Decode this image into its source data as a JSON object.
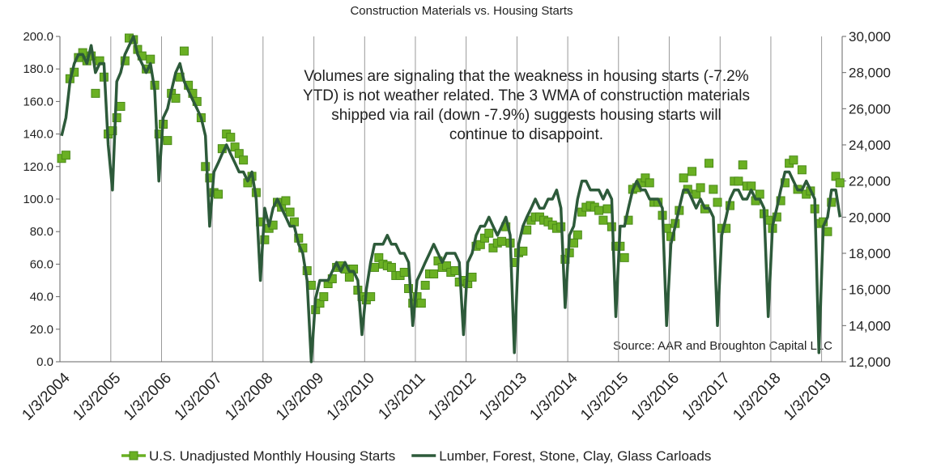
{
  "chart_data": {
    "type": "line",
    "title": "Construction Materials vs. Housing Starts",
    "annotation": [
      "Volumes are signaling that the weakness in housing starts (-7.2%",
      "YTD) is not weather related.  The 3 WMA of construction materials",
      "shipped via rail (down -7.9%) suggests housing starts will",
      "continue to disappoint."
    ],
    "source": "Source: AAR and Broughton Capital LLC",
    "x": [
      "2004-01",
      "2004-02",
      "2004-03",
      "2004-04",
      "2004-05",
      "2004-06",
      "2004-07",
      "2004-08",
      "2004-09",
      "2004-10",
      "2004-11",
      "2004-12",
      "2005-01",
      "2005-02",
      "2005-03",
      "2005-04",
      "2005-05",
      "2005-06",
      "2005-07",
      "2005-08",
      "2005-09",
      "2005-10",
      "2005-11",
      "2005-12",
      "2006-01",
      "2006-02",
      "2006-03",
      "2006-04",
      "2006-05",
      "2006-06",
      "2006-07",
      "2006-08",
      "2006-09",
      "2006-10",
      "2006-11",
      "2006-12",
      "2007-01",
      "2007-02",
      "2007-03",
      "2007-04",
      "2007-05",
      "2007-06",
      "2007-07",
      "2007-08",
      "2007-09",
      "2007-10",
      "2007-11",
      "2007-12",
      "2008-01",
      "2008-02",
      "2008-03",
      "2008-04",
      "2008-05",
      "2008-06",
      "2008-07",
      "2008-08",
      "2008-09",
      "2008-10",
      "2008-11",
      "2008-12",
      "2009-01",
      "2009-02",
      "2009-03",
      "2009-04",
      "2009-05",
      "2009-06",
      "2009-07",
      "2009-08",
      "2009-09",
      "2009-10",
      "2009-11",
      "2009-12",
      "2010-01",
      "2010-02",
      "2010-03",
      "2010-04",
      "2010-05",
      "2010-06",
      "2010-07",
      "2010-08",
      "2010-09",
      "2010-10",
      "2010-11",
      "2010-12",
      "2011-01",
      "2011-02",
      "2011-03",
      "2011-04",
      "2011-05",
      "2011-06",
      "2011-07",
      "2011-08",
      "2011-09",
      "2011-10",
      "2011-11",
      "2011-12",
      "2012-01",
      "2012-02",
      "2012-03",
      "2012-04",
      "2012-05",
      "2012-06",
      "2012-07",
      "2012-08",
      "2012-09",
      "2012-10",
      "2012-11",
      "2012-12",
      "2013-01",
      "2013-02",
      "2013-03",
      "2013-04",
      "2013-05",
      "2013-06",
      "2013-07",
      "2013-08",
      "2013-09",
      "2013-10",
      "2013-11",
      "2013-12",
      "2014-01",
      "2014-02",
      "2014-03",
      "2014-04",
      "2014-05",
      "2014-06",
      "2014-07",
      "2014-08",
      "2014-09",
      "2014-10",
      "2014-11",
      "2014-12",
      "2015-01",
      "2015-02",
      "2015-03",
      "2015-04",
      "2015-05",
      "2015-06",
      "2015-07",
      "2015-08",
      "2015-09",
      "2015-10",
      "2015-11",
      "2015-12",
      "2016-01",
      "2016-02",
      "2016-03",
      "2016-04",
      "2016-05",
      "2016-06",
      "2016-07",
      "2016-08",
      "2016-09",
      "2016-10",
      "2016-11",
      "2016-12",
      "2017-01",
      "2017-02",
      "2017-03",
      "2017-04",
      "2017-05",
      "2017-06",
      "2017-07",
      "2017-08",
      "2017-09",
      "2017-10",
      "2017-11",
      "2017-12",
      "2018-01",
      "2018-02",
      "2018-03",
      "2018-04",
      "2018-05",
      "2018-06",
      "2018-07",
      "2018-08",
      "2018-09",
      "2018-10",
      "2018-11",
      "2018-12",
      "2019-01",
      "2019-02",
      "2019-03",
      "2019-04",
      "2019-05"
    ],
    "xlim": [
      "2004-01-03",
      "2019-05-31"
    ],
    "xticks": [
      {
        "value": "2004-01-03",
        "label": "1/3/2004"
      },
      {
        "value": "2005-01-03",
        "label": "1/3/2005"
      },
      {
        "value": "2006-01-03",
        "label": "1/3/2006"
      },
      {
        "value": "2007-01-03",
        "label": "1/3/2007"
      },
      {
        "value": "2008-01-03",
        "label": "1/3/2008"
      },
      {
        "value": "2009-01-03",
        "label": "1/3/2009"
      },
      {
        "value": "2010-01-03",
        "label": "1/3/2010"
      },
      {
        "value": "2011-01-03",
        "label": "1/3/2011"
      },
      {
        "value": "2012-01-03",
        "label": "1/3/2012"
      },
      {
        "value": "2013-01-03",
        "label": "1/3/2013"
      },
      {
        "value": "2014-01-03",
        "label": "1/3/2014"
      },
      {
        "value": "2015-01-03",
        "label": "1/3/2015"
      },
      {
        "value": "2016-01-03",
        "label": "1/3/2016"
      },
      {
        "value": "2017-01-03",
        "label": "1/3/2017"
      },
      {
        "value": "2018-01-03",
        "label": "1/3/2018"
      },
      {
        "value": "2019-01-03",
        "label": "1/3/2019"
      }
    ],
    "ylim": [
      0,
      200
    ],
    "yticks": [
      {
        "value": 0,
        "label": "0.0"
      },
      {
        "value": 20,
        "label": "20.0"
      },
      {
        "value": 40,
        "label": "40.0"
      },
      {
        "value": 60,
        "label": "60.0"
      },
      {
        "value": 80,
        "label": "80.0"
      },
      {
        "value": 100,
        "label": "100.0"
      },
      {
        "value": 120,
        "label": "120.0"
      },
      {
        "value": 140,
        "label": "140.0"
      },
      {
        "value": 160,
        "label": "160.0"
      },
      {
        "value": 180,
        "label": "180.0"
      },
      {
        "value": 200,
        "label": "200.0"
      }
    ],
    "y2lim": [
      12000,
      30000
    ],
    "y2ticks": [
      {
        "value": 12000,
        "label": "12,000"
      },
      {
        "value": 14000,
        "label": "14,000"
      },
      {
        "value": 16000,
        "label": "16,000"
      },
      {
        "value": 18000,
        "label": "18,000"
      },
      {
        "value": 20000,
        "label": "20,000"
      },
      {
        "value": 22000,
        "label": "22,000"
      },
      {
        "value": 24000,
        "label": "24,000"
      },
      {
        "value": 26000,
        "label": "26,000"
      },
      {
        "value": 28000,
        "label": "28,000"
      },
      {
        "value": 30000,
        "label": "30,000"
      }
    ],
    "grid": "x",
    "legend": "bottom",
    "series": [
      {
        "name": "U.S. Unadjusted Monthly Housing Starts",
        "color": "#6ab023",
        "marker": "square",
        "axis": "y",
        "values": [
          125,
          127,
          174,
          178,
          187,
          190,
          185,
          188,
          165,
          185,
          175,
          140,
          142,
          150,
          157,
          185,
          199,
          198,
          192,
          188,
          180,
          186,
          170,
          140,
          146,
          136,
          165,
          162,
          175,
          191,
          170,
          165,
          160,
          150,
          120,
          113,
          104,
          103,
          131,
          140,
          138,
          132,
          128,
          124,
          110,
          114,
          104,
          86,
          75,
          82,
          84,
          98,
          95,
          99,
          92,
          86,
          76,
          70,
          56,
          47,
          32,
          36,
          40,
          48,
          51,
          58,
          59,
          57,
          52,
          57,
          44,
          40,
          38,
          40,
          58,
          64,
          60,
          59,
          58,
          53,
          53,
          55,
          45,
          36,
          40,
          36,
          47,
          54,
          54,
          62,
          58,
          59,
          55,
          56,
          49,
          50,
          48,
          52,
          71,
          72,
          76,
          79,
          70,
          73,
          74,
          83,
          73,
          61,
          67,
          68,
          81,
          87,
          89,
          89,
          87,
          86,
          84,
          82,
          83,
          63,
          67,
          73,
          78,
          92,
          95,
          96,
          95,
          93,
          87,
          94,
          83,
          71,
          71,
          64,
          87,
          106,
          107,
          110,
          113,
          110,
          98,
          98,
          90,
          82,
          77,
          85,
          93,
          113,
          106,
          117,
          103,
          107,
          94,
          122,
          106,
          98,
          82,
          82,
          96,
          111,
          111,
          121,
          108,
          108,
          99,
          103,
          91,
          87,
          82,
          89,
          99,
          110,
          122,
          124,
          106,
          118,
          103,
          105,
          94,
          85,
          86,
          80,
          98,
          114,
          110
        ]
      },
      {
        "name": "Lumber, Forest, Stone, Clay, Glass Carloads",
        "color": "#2d5a3a",
        "axis": "y2",
        "values": [
          24500,
          25500,
          27500,
          28500,
          29000,
          29000,
          28500,
          29500,
          28000,
          28500,
          28500,
          24000,
          21500,
          27500,
          28000,
          29000,
          29500,
          30000,
          29000,
          28500,
          28000,
          28500,
          27000,
          22000,
          25500,
          26000,
          27000,
          28000,
          28500,
          27500,
          27000,
          26500,
          26000,
          25500,
          24500,
          19500,
          22500,
          23000,
          23500,
          24000,
          23500,
          23000,
          22500,
          22500,
          22000,
          22500,
          21000,
          16500,
          20500,
          19500,
          20500,
          21000,
          20500,
          20000,
          19500,
          19500,
          18500,
          18000,
          16500,
          12000,
          15500,
          16500,
          16500,
          16500,
          17000,
          17500,
          17000,
          17500,
          17000,
          17000,
          16500,
          13500,
          16000,
          17500,
          18500,
          18500,
          18500,
          19000,
          18500,
          18500,
          18000,
          18000,
          17500,
          14000,
          16500,
          17000,
          17500,
          18000,
          18500,
          18000,
          17500,
          18000,
          18000,
          18000,
          17500,
          13500,
          17500,
          18000,
          19000,
          19500,
          19500,
          20000,
          19500,
          19000,
          19500,
          20000,
          19000,
          12500,
          18500,
          19500,
          20000,
          20500,
          21000,
          20500,
          20500,
          21000,
          21000,
          21500,
          20500,
          15000,
          19000,
          19500,
          21000,
          22000,
          22000,
          21500,
          21500,
          21500,
          21000,
          21500,
          21000,
          14500,
          19500,
          19500,
          20500,
          21500,
          22000,
          21500,
          21500,
          21000,
          21000,
          21000,
          20500,
          14000,
          18500,
          19500,
          20500,
          21500,
          21500,
          21000,
          20500,
          21000,
          20500,
          20500,
          20000,
          14000,
          19000,
          20000,
          21000,
          21500,
          21500,
          21000,
          21000,
          21500,
          21000,
          21000,
          20500,
          14500,
          19500,
          20500,
          21500,
          22500,
          22500,
          22000,
          21500,
          21500,
          22000,
          21500,
          21000,
          12500,
          19500,
          20000,
          21500,
          21500,
          20000
        ]
      }
    ]
  }
}
